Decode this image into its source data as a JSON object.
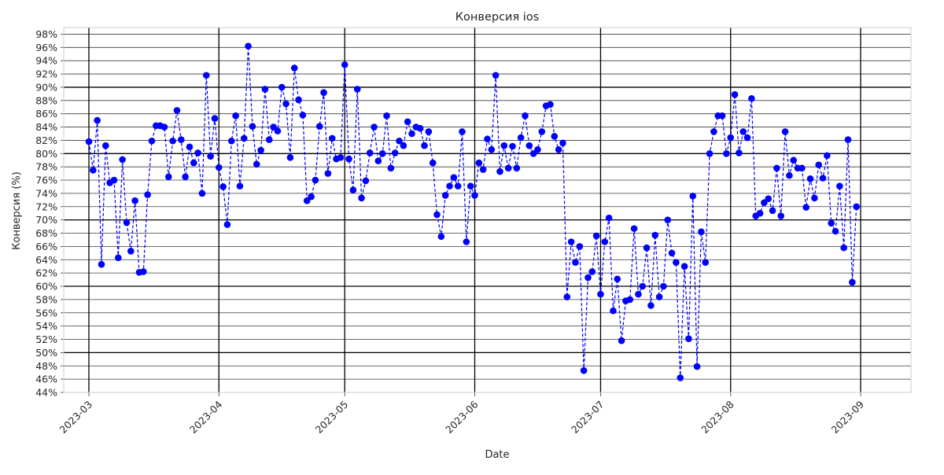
{
  "chart_data": {
    "type": "line",
    "title": "Конверсия ios",
    "xlabel": "Date",
    "ylabel": "Конверсия (%)",
    "ylim": [
      44,
      99
    ],
    "y_ticks": [
      44,
      46,
      48,
      50,
      52,
      54,
      56,
      58,
      60,
      62,
      64,
      66,
      68,
      70,
      72,
      74,
      76,
      78,
      80,
      82,
      84,
      86,
      88,
      90,
      92,
      94,
      96,
      98
    ],
    "y_tick_suffix": "%",
    "x_range": [
      "2023-02-23",
      "2023-09-13"
    ],
    "x_ticks": [
      "2023-03-01",
      "2023-04-01",
      "2023-05-01",
      "2023-06-01",
      "2023-07-01",
      "2023-08-01",
      "2023-09-01"
    ],
    "x_tick_labels": [
      "2023-03",
      "2023-04",
      "2023-05",
      "2023-06",
      "2023-07",
      "2023-08",
      "2023-09"
    ],
    "grid": true,
    "major_y_lines": [
      50,
      60,
      70,
      80,
      90
    ],
    "series": [
      {
        "color": "#0000ff",
        "line_style": "dashed",
        "marker": "circle",
        "x": [
          "2023-03-01",
          "2023-03-02",
          "2023-03-03",
          "2023-03-04",
          "2023-03-05",
          "2023-03-06",
          "2023-03-07",
          "2023-03-08",
          "2023-03-09",
          "2023-03-10",
          "2023-03-11",
          "2023-03-12",
          "2023-03-13",
          "2023-03-14",
          "2023-03-15",
          "2023-03-16",
          "2023-03-17",
          "2023-03-18",
          "2023-03-19",
          "2023-03-20",
          "2023-03-21",
          "2023-03-22",
          "2023-03-23",
          "2023-03-24",
          "2023-03-25",
          "2023-03-26",
          "2023-03-27",
          "2023-03-28",
          "2023-03-29",
          "2023-03-30",
          "2023-03-31",
          "2023-04-01",
          "2023-04-02",
          "2023-04-03",
          "2023-04-04",
          "2023-04-05",
          "2023-04-06",
          "2023-04-07",
          "2023-04-08",
          "2023-04-09",
          "2023-04-10",
          "2023-04-11",
          "2023-04-12",
          "2023-04-13",
          "2023-04-14",
          "2023-04-15",
          "2023-04-16",
          "2023-04-17",
          "2023-04-18",
          "2023-04-19",
          "2023-04-20",
          "2023-04-21",
          "2023-04-22",
          "2023-04-23",
          "2023-04-24",
          "2023-04-25",
          "2023-04-26",
          "2023-04-27",
          "2023-04-28",
          "2023-04-29",
          "2023-04-30",
          "2023-05-01",
          "2023-05-02",
          "2023-05-03",
          "2023-05-04",
          "2023-05-05",
          "2023-05-06",
          "2023-05-07",
          "2023-05-08",
          "2023-05-09",
          "2023-05-10",
          "2023-05-11",
          "2023-05-12",
          "2023-05-13",
          "2023-05-14",
          "2023-05-15",
          "2023-05-16",
          "2023-05-17",
          "2023-05-18",
          "2023-05-19",
          "2023-05-20",
          "2023-05-21",
          "2023-05-22",
          "2023-05-23",
          "2023-05-24",
          "2023-05-25",
          "2023-05-26",
          "2023-05-27",
          "2023-05-28",
          "2023-05-29",
          "2023-05-30",
          "2023-05-31",
          "2023-06-01",
          "2023-06-02",
          "2023-06-03",
          "2023-06-04",
          "2023-06-05",
          "2023-06-06",
          "2023-06-07",
          "2023-06-08",
          "2023-06-09",
          "2023-06-10",
          "2023-06-11",
          "2023-06-12",
          "2023-06-13",
          "2023-06-14",
          "2023-06-15",
          "2023-06-16",
          "2023-06-17",
          "2023-06-18",
          "2023-06-19",
          "2023-06-20",
          "2023-06-21",
          "2023-06-22",
          "2023-06-23",
          "2023-06-24",
          "2023-06-25",
          "2023-06-26",
          "2023-06-27",
          "2023-06-28",
          "2023-06-29",
          "2023-06-30",
          "2023-07-01",
          "2023-07-02",
          "2023-07-03",
          "2023-07-04",
          "2023-07-05",
          "2023-07-06",
          "2023-07-07",
          "2023-07-08",
          "2023-07-09",
          "2023-07-10",
          "2023-07-11",
          "2023-07-12",
          "2023-07-13",
          "2023-07-14",
          "2023-07-15",
          "2023-07-16",
          "2023-07-17",
          "2023-07-18",
          "2023-07-19",
          "2023-07-20",
          "2023-07-21",
          "2023-07-22",
          "2023-07-23",
          "2023-07-24",
          "2023-07-25",
          "2023-07-26",
          "2023-07-27",
          "2023-07-28",
          "2023-07-29",
          "2023-07-30",
          "2023-07-31",
          "2023-08-01",
          "2023-08-02",
          "2023-08-03",
          "2023-08-04",
          "2023-08-05",
          "2023-08-06",
          "2023-08-07",
          "2023-08-08",
          "2023-08-09",
          "2023-08-10",
          "2023-08-11",
          "2023-08-12",
          "2023-08-13",
          "2023-08-14",
          "2023-08-15",
          "2023-08-16",
          "2023-08-17",
          "2023-08-18",
          "2023-08-19",
          "2023-08-20",
          "2023-08-21",
          "2023-08-22",
          "2023-08-23",
          "2023-08-24",
          "2023-08-25",
          "2023-08-26",
          "2023-08-27",
          "2023-08-28",
          "2023-08-29",
          "2023-08-30",
          "2023-08-31"
        ],
        "y": [
          81.8,
          77.5,
          85.0,
          63.3,
          81.2,
          75.6,
          76.0,
          64.3,
          79.1,
          69.6,
          65.3,
          72.9,
          62.1,
          62.2,
          73.8,
          81.9,
          84.2,
          84.2,
          84.0,
          76.5,
          81.9,
          86.5,
          82.1,
          76.5,
          81.0,
          78.6,
          80.1,
          74.0,
          91.8,
          79.6,
          85.3,
          77.9,
          75.0,
          69.3,
          81.9,
          85.7,
          75.1,
          82.3,
          96.2,
          84.1,
          78.4,
          80.5,
          89.7,
          82.1,
          84.0,
          83.4,
          90.0,
          87.5,
          79.4,
          92.9,
          88.1,
          85.8,
          72.9,
          73.5,
          76.0,
          84.1,
          89.2,
          77.0,
          82.3,
          79.2,
          79.4,
          93.4,
          79.2,
          74.5,
          89.7,
          73.3,
          75.9,
          80.1,
          84.0,
          78.9,
          80.0,
          85.7,
          77.8,
          80.1,
          81.9,
          81.2,
          84.8,
          83.0,
          84.0,
          83.8,
          81.2,
          83.3,
          78.6,
          70.8,
          67.5,
          73.7,
          75.1,
          76.4,
          75.1,
          83.3,
          66.7,
          75.1,
          73.7,
          78.6,
          77.6,
          82.2,
          80.6,
          91.8,
          77.3,
          81.2,
          77.8,
          81.1,
          77.8,
          82.4,
          85.7,
          81.2,
          80.0,
          80.6,
          83.3,
          87.2,
          87.4,
          82.6,
          80.6,
          81.6,
          58.4,
          66.7,
          63.6,
          66.0,
          47.3,
          61.3,
          62.2,
          67.6,
          58.8,
          66.7,
          70.3,
          56.3,
          61.1,
          51.8,
          57.8,
          58.0,
          68.7,
          58.8,
          60.0,
          65.8,
          57.1,
          67.7,
          58.4,
          60.0,
          70.0,
          65.0,
          63.6,
          46.2,
          63.0,
          52.1,
          73.6,
          47.9,
          68.2,
          63.6,
          80.0,
          83.3,
          85.7,
          85.7,
          80.0,
          82.4,
          88.9,
          80.1,
          83.3,
          82.4,
          88.3,
          70.6,
          71.0,
          72.6,
          73.2,
          71.4,
          77.8,
          70.6,
          83.3,
          76.7,
          79.0,
          77.8,
          77.8,
          71.9,
          76.2,
          73.3,
          78.3,
          76.3,
          79.7,
          69.5,
          68.3,
          75.1,
          65.8,
          82.1,
          60.6,
          72.0
        ]
      }
    ]
  }
}
